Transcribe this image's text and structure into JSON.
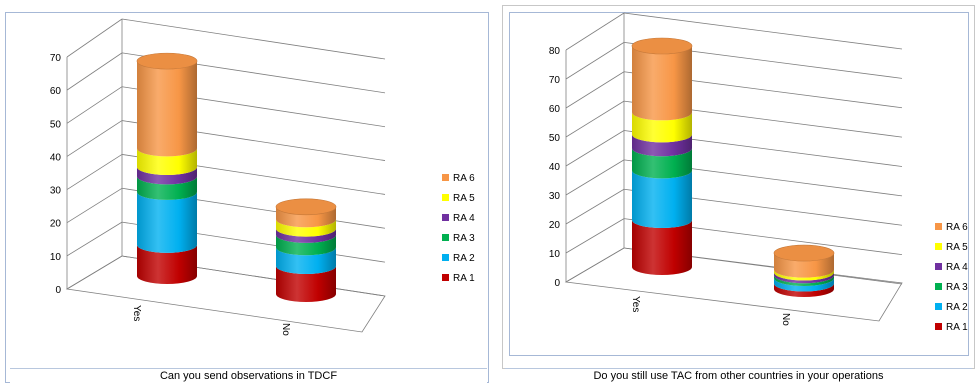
{
  "legend_colors": {
    "RA 1": "#c00000",
    "RA 2": "#00b0f0",
    "RA 3": "#00b050",
    "RA 4": "#7030a0",
    "RA 5": "#ffff00",
    "RA 6": "#f79646"
  },
  "chart_data": [
    {
      "type": "bar",
      "subtype": "3d-stacked-cylinder",
      "caption": "Can you send observations in TDCF",
      "categories": [
        "Yes",
        "No"
      ],
      "ylim": [
        0,
        70
      ],
      "yticks": [
        "0",
        "10",
        "20",
        "30",
        "40",
        "50",
        "60",
        "70"
      ],
      "legend_position": "right",
      "series": [
        {
          "name": "RA 1",
          "values": [
            10,
            9
          ]
        },
        {
          "name": "RA 2",
          "values": [
            17,
            6
          ]
        },
        {
          "name": "RA 3",
          "values": [
            5,
            4
          ]
        },
        {
          "name": "RA 4",
          "values": [
            3,
            2
          ]
        },
        {
          "name": "RA 5",
          "values": [
            6,
            3
          ]
        },
        {
          "name": "RA 6",
          "values": [
            28,
            4
          ]
        }
      ]
    },
    {
      "type": "bar",
      "subtype": "3d-stacked-cylinder",
      "caption": "Do you still use TAC from other countries in your operations",
      "categories": [
        "Yes",
        "No"
      ],
      "ylim": [
        0,
        80
      ],
      "yticks": [
        "0",
        "10",
        "20",
        "30",
        "40",
        "50",
        "60",
        "70",
        "80"
      ],
      "legend_position": "right",
      "series": [
        {
          "name": "RA 1",
          "values": [
            17,
            2
          ]
        },
        {
          "name": "RA 2",
          "values": [
            18,
            2
          ]
        },
        {
          "name": "RA 3",
          "values": [
            8,
            1
          ]
        },
        {
          "name": "RA 4",
          "values": [
            5,
            1
          ]
        },
        {
          "name": "RA 5",
          "values": [
            8,
            1
          ]
        },
        {
          "name": "RA 6",
          "values": [
            24,
            6
          ]
        }
      ]
    }
  ]
}
